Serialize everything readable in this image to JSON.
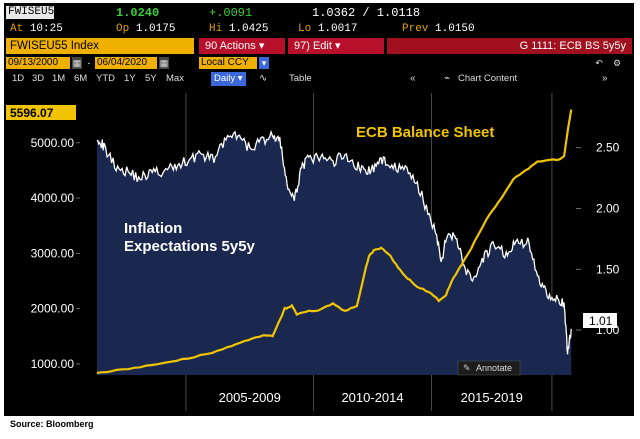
{
  "quote": {
    "ticker": "FWISEU55",
    "last": "1.0240",
    "change": "+.0091",
    "bid_ask": "1.0362 / 1.0118",
    "time_label": "At",
    "time": "10:25",
    "open_label": "Op",
    "open": "1.0175",
    "high_label": "Hi",
    "high": "1.0425",
    "low_label": "Lo",
    "low": "1.0017",
    "prev_label": "Prev",
    "prev": "1.0150"
  },
  "menubar": {
    "index_label": "FWISEU55 Index",
    "actions_label": "90 Actions ▾",
    "edit_label": "97) Edit ▾",
    "chart_title": "G 1111: ECB BS 5y5y"
  },
  "daterange": {
    "start": "09/13/2000",
    "end": "06/04/2020",
    "currency": "Local CCY"
  },
  "toolbar": {
    "periods": [
      "1D",
      "3D",
      "1M",
      "6M",
      "YTD",
      "1Y",
      "5Y",
      "Max"
    ],
    "frequency": "Daily ▾",
    "table_label": "Table",
    "chart_content_label": "Chart Content"
  },
  "colors": {
    "background": "#000000",
    "area_fill": "#1a2850",
    "ecb_line": "#f0c400",
    "inflation_line": "#ffffff",
    "accent_orange": "#f0b000",
    "accent_red": "#b8102a"
  },
  "chart_data": {
    "type": "line",
    "annotations": {
      "ecb": "ECB Balance Sheet",
      "inflation": "Inflation\nExpectations 5y5y"
    },
    "left_axis": {
      "ticks": [
        "5000.00",
        "4000.00",
        "3000.00",
        "2000.00",
        "1000.00"
      ],
      "ylim": [
        800,
        5900
      ],
      "last_value": "5596.07"
    },
    "right_axis": {
      "ticks": [
        "2.50",
        "2.00",
        "1.50",
        "1.00"
      ],
      "ylim": [
        0.63,
        2.95
      ],
      "last_value": "1.01"
    },
    "x_groups": [
      "2005-2009",
      "2010-2014",
      "2015-2019"
    ],
    "annotate_button": "Annotate",
    "series": [
      {
        "name": "ECB Balance Sheet",
        "axis": "left",
        "x": [
          2000.7,
          2001.5,
          2002.5,
          2003.5,
          2004.5,
          2005.5,
          2006.3,
          2007.0,
          2007.6,
          2008.0,
          2008.5,
          2008.8,
          2009.0,
          2009.5,
          2010.0,
          2010.5,
          2011.0,
          2011.5,
          2011.8,
          2012.0,
          2012.2,
          2012.5,
          2012.9,
          2013.2,
          2013.6,
          2014.0,
          2014.5,
          2014.9,
          2015.2,
          2015.5,
          2016.0,
          2016.5,
          2017.0,
          2017.5,
          2018.0,
          2018.5,
          2019.0,
          2019.5,
          2019.9,
          2020.1,
          2020.25,
          2020.4
        ],
        "y": [
          850,
          880,
          950,
          1020,
          1100,
          1200,
          1320,
          1440,
          1520,
          1500,
          2000,
          2050,
          1900,
          1950,
          1980,
          2100,
          1950,
          2050,
          2600,
          2950,
          3050,
          3100,
          2950,
          2750,
          2550,
          2400,
          2300,
          2150,
          2250,
          2550,
          2900,
          3300,
          3700,
          4000,
          4350,
          4500,
          4650,
          4680,
          4700,
          4750,
          5200,
          5600
        ]
      },
      {
        "name": "Inflation Expectations 5y5y",
        "axis": "right",
        "x": [
          2000.7,
          2001.0,
          2001.5,
          2002.0,
          2002.5,
          2003.0,
          2003.5,
          2004.0,
          2004.5,
          2005.0,
          2005.5,
          2006.0,
          2006.5,
          2007.0,
          2007.5,
          2008.0,
          2008.3,
          2008.6,
          2008.9,
          2009.2,
          2009.5,
          2010.0,
          2010.5,
          2011.0,
          2011.5,
          2011.9,
          2012.3,
          2012.7,
          2013.2,
          2013.7,
          2014.2,
          2014.7,
          2015.0,
          2015.3,
          2015.6,
          2016.0,
          2016.4,
          2016.8,
          2017.2,
          2017.7,
          2018.1,
          2018.6,
          2019.0,
          2019.4,
          2019.8,
          2020.1,
          2020.25,
          2020.4
        ],
        "y": [
          2.6,
          2.5,
          2.35,
          2.3,
          2.25,
          2.3,
          2.3,
          2.35,
          2.4,
          2.45,
          2.4,
          2.55,
          2.6,
          2.5,
          2.55,
          2.6,
          2.55,
          2.2,
          2.05,
          2.35,
          2.4,
          2.42,
          2.38,
          2.45,
          2.35,
          2.3,
          2.35,
          2.4,
          2.33,
          2.3,
          2.1,
          1.85,
          1.58,
          1.8,
          1.78,
          1.5,
          1.4,
          1.6,
          1.7,
          1.62,
          1.72,
          1.72,
          1.45,
          1.3,
          1.27,
          1.2,
          0.82,
          1.01
        ]
      }
    ]
  },
  "source": "Source: Bloomberg"
}
